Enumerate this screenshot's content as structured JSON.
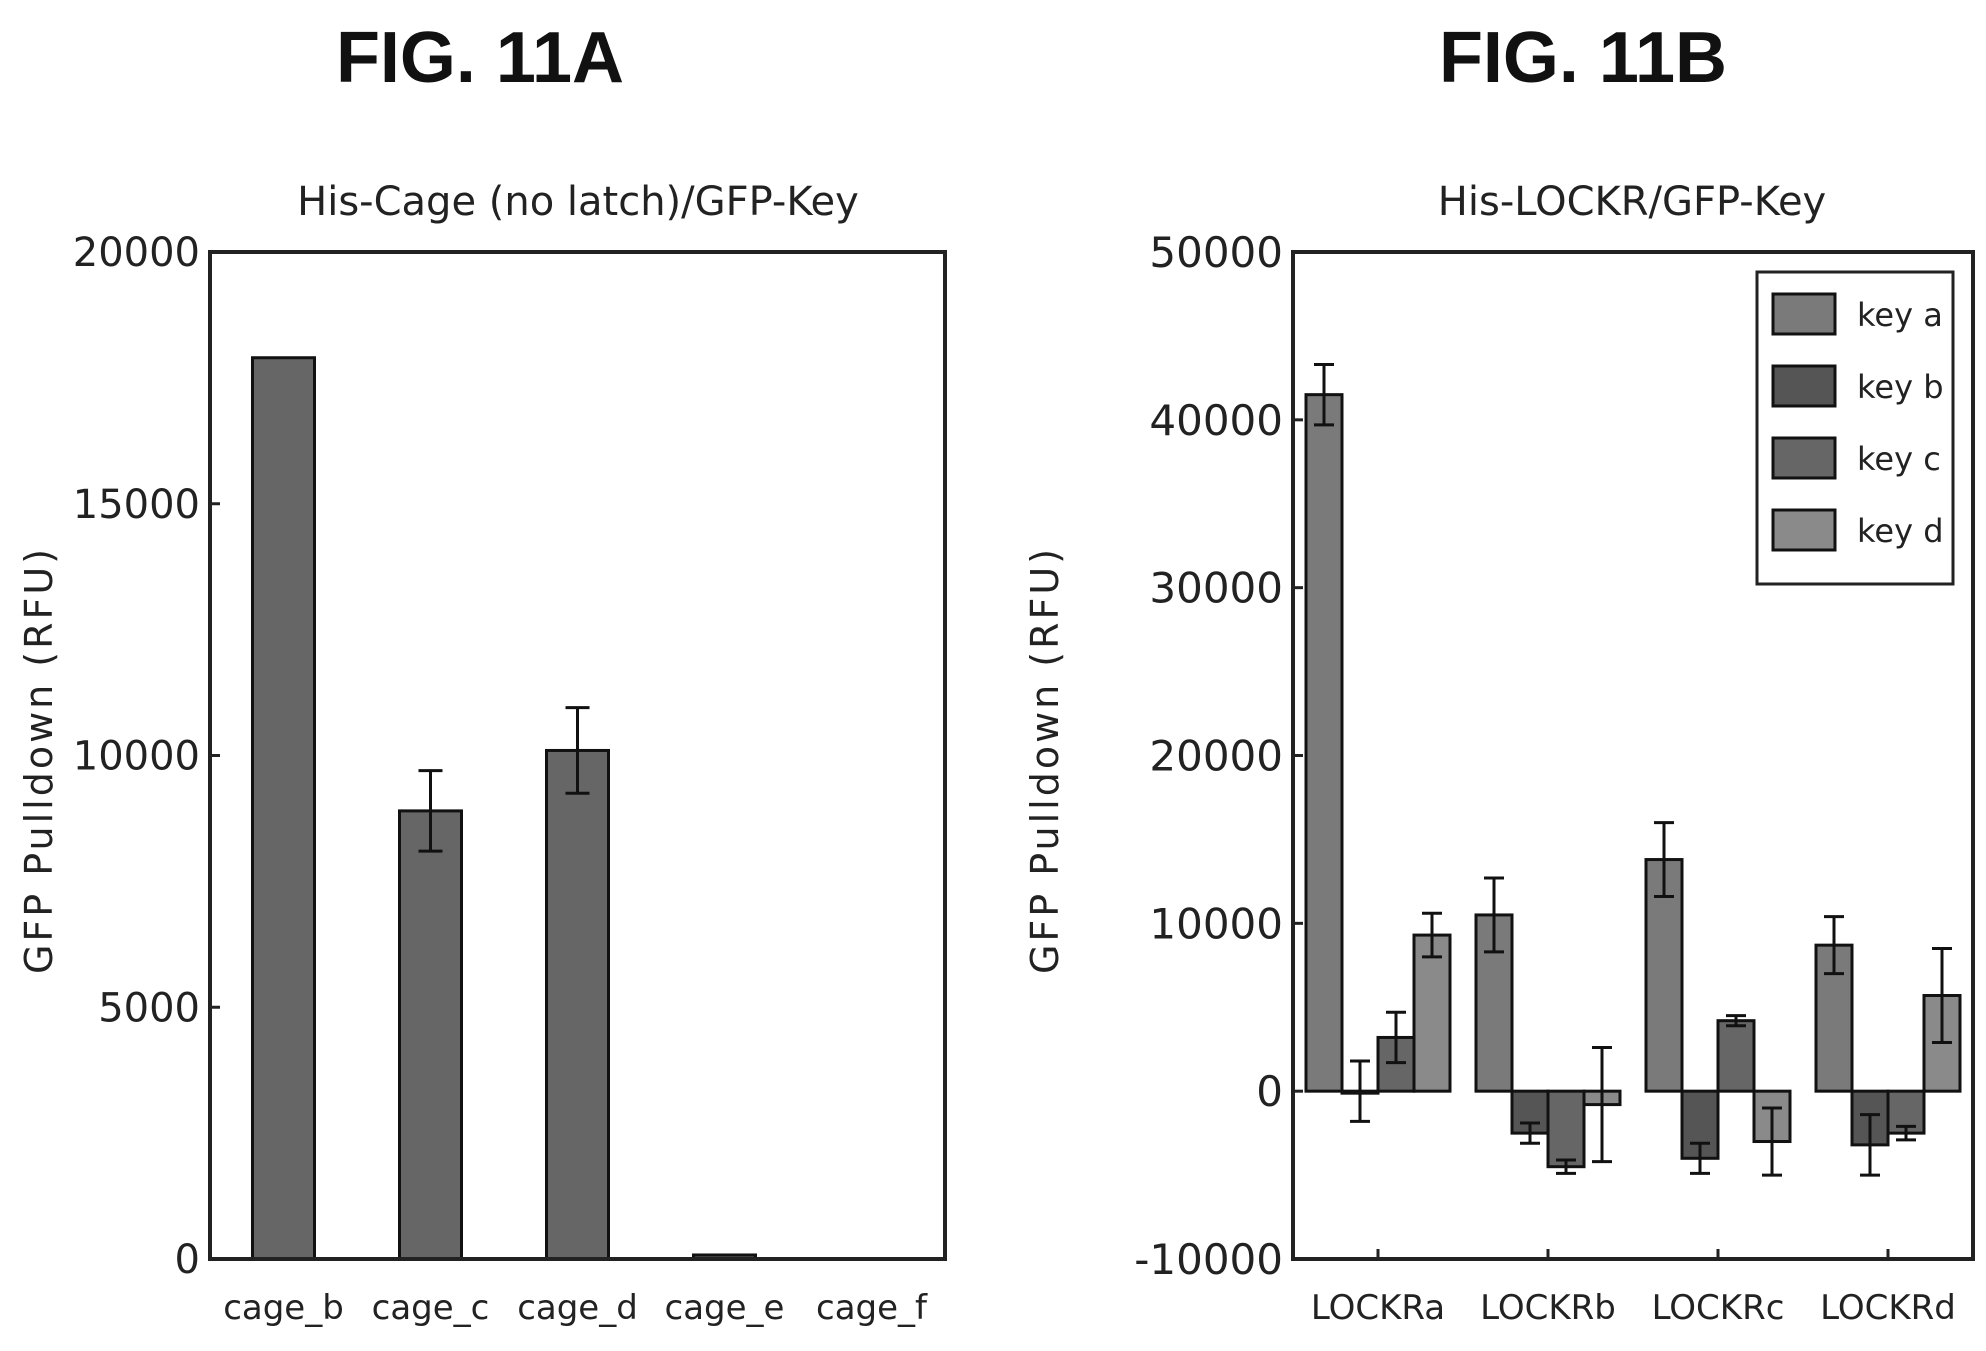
{
  "figure_labels": [
    "FIG. 11A",
    "FIG. 11B"
  ],
  "chart_data": [
    {
      "type": "bar",
      "title": "His-Cage (no latch)/GFP-Key",
      "xlabel": "",
      "ylabel": "GFP Pulldown (RFU)",
      "ylim": [
        0,
        20000
      ],
      "yticks": [
        0,
        5000,
        10000,
        15000,
        20000
      ],
      "categories": [
        "cage_b",
        "cage_c",
        "cage_d",
        "cage_e",
        "cage_f"
      ],
      "values": [
        17900,
        8900,
        10100,
        80,
        0
      ],
      "errors": [
        0,
        800,
        850,
        0,
        0
      ],
      "grid": false,
      "color": "#666666"
    },
    {
      "type": "bar",
      "title": "His-LOCKR/GFP-Key",
      "xlabel": "",
      "ylabel": "GFP Pulldown (RFU)",
      "ylim": [
        -10000,
        50000
      ],
      "yticks": [
        -10000,
        0,
        10000,
        20000,
        30000,
        40000,
        50000
      ],
      "categories": [
        "LOCKRa",
        "LOCKRb",
        "LOCKRc",
        "LOCKRd"
      ],
      "legend_position": "top-right",
      "grid": false,
      "series": [
        {
          "name": "key a",
          "color": "#7a7a7a",
          "values": [
            41500,
            10500,
            13800,
            8700
          ],
          "errors": [
            1800,
            2200,
            2200,
            1700
          ]
        },
        {
          "name": "key b",
          "color": "#555555",
          "values": [
            0,
            -2500,
            -4000,
            -3200
          ],
          "errors": [
            1800,
            600,
            900,
            1800
          ]
        },
        {
          "name": "key c",
          "color": "#666666",
          "values": [
            3200,
            -4500,
            4200,
            -2500
          ],
          "errors": [
            1500,
            400,
            300,
            400
          ]
        },
        {
          "name": "key d",
          "color": "#8a8a8a",
          "values": [
            9300,
            -800,
            -3000,
            5700
          ],
          "errors": [
            1300,
            3400,
            2000,
            2800
          ]
        }
      ]
    }
  ]
}
